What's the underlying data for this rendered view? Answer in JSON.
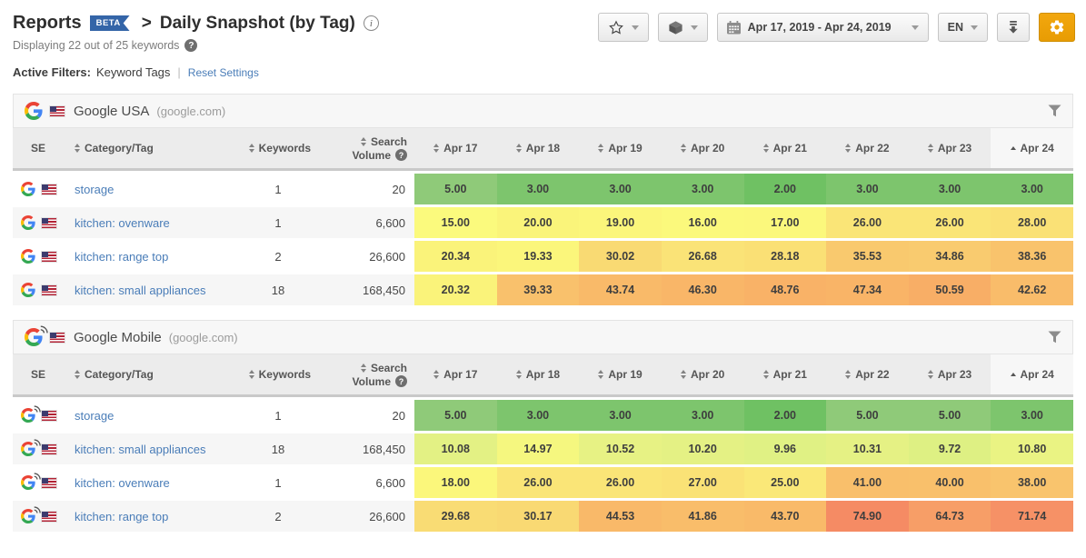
{
  "header": {
    "title": "Reports",
    "beta_badge": "BETA",
    "breadcrumb_separator": ">",
    "report_name": "Daily Snapshot (by Tag)",
    "info_icon": "i",
    "displaying_text": "Displaying 22 out of 25 keywords",
    "help_icon": "?"
  },
  "toolbar": {
    "favorite_icon": "star",
    "package_icon": "package",
    "calendar_icon": "calendar",
    "date_range": "Apr 17, 2019 - Apr 24, 2019",
    "language": "EN",
    "download_icon": "download",
    "settings_icon": "gear"
  },
  "filters": {
    "label": "Active Filters:",
    "value": "Keyword Tags",
    "separator": "|",
    "reset_label": "Reset Settings"
  },
  "columns": {
    "se": "SE",
    "category": "Category/Tag",
    "keywords": "Keywords",
    "search_volume_line1": "Search",
    "search_volume_line2": "Volume",
    "dates": [
      "Apr 17",
      "Apr 18",
      "Apr 19",
      "Apr 20",
      "Apr 21",
      "Apr 22",
      "Apr 23",
      "Apr 24"
    ],
    "sorted_column": "Apr 24",
    "sort_direction": "asc"
  },
  "sections": [
    {
      "name": "Google USA",
      "domain": "(google.com)",
      "device": "desktop",
      "rows": [
        {
          "category": "storage",
          "keywords": "1",
          "search_volume": "20",
          "values": [
            "5.00",
            "3.00",
            "3.00",
            "3.00",
            "2.00",
            "3.00",
            "3.00",
            "3.00"
          ],
          "colors": [
            "#8fca79",
            "#7dc56d",
            "#7dc56d",
            "#7dc56d",
            "#6fc163",
            "#7dc56d",
            "#7dc56d",
            "#7dc56d"
          ]
        },
        {
          "category": "kitchen: ovenware",
          "keywords": "1",
          "search_volume": "6,600",
          "values": [
            "15.00",
            "20.00",
            "19.00",
            "16.00",
            "17.00",
            "26.00",
            "26.00",
            "28.00"
          ],
          "colors": [
            "#fbfa7d",
            "#faf47a",
            "#fbf67b",
            "#fbf97c",
            "#fbf87c",
            "#fae577",
            "#fae577",
            "#fae176"
          ]
        },
        {
          "category": "kitchen: range top",
          "keywords": "2",
          "search_volume": "26,600",
          "values": [
            "20.34",
            "19.33",
            "30.02",
            "26.68",
            "28.18",
            "35.53",
            "34.86",
            "38.36"
          ],
          "colors": [
            "#faf37a",
            "#fbf67b",
            "#f9da73",
            "#fae377",
            "#fae075",
            "#f9c96e",
            "#f9cb6f",
            "#f9c36c"
          ]
        },
        {
          "category": "kitchen: small appliances",
          "keywords": "18",
          "search_volume": "168,450",
          "values": [
            "20.32",
            "39.33",
            "43.74",
            "46.30",
            "48.76",
            "47.34",
            "50.59",
            "42.62"
          ],
          "colors": [
            "#faf37a",
            "#f9c16c",
            "#f9ba69",
            "#f9b668",
            "#f9b267",
            "#f9b467",
            "#f8ae66",
            "#f9bc6a"
          ]
        }
      ]
    },
    {
      "name": "Google Mobile",
      "domain": "(google.com)",
      "device": "mobile",
      "rows": [
        {
          "category": "storage",
          "keywords": "1",
          "search_volume": "20",
          "values": [
            "5.00",
            "3.00",
            "3.00",
            "3.00",
            "2.00",
            "5.00",
            "5.00",
            "3.00"
          ],
          "colors": [
            "#8fca79",
            "#7dc56d",
            "#7dc56d",
            "#7dc56d",
            "#6fc163",
            "#8fca79",
            "#8fca79",
            "#7dc56d"
          ]
        },
        {
          "category": "kitchen: small appliances",
          "keywords": "18",
          "search_volume": "168,450",
          "values": [
            "10.08",
            "14.97",
            "10.52",
            "10.20",
            "9.96",
            "10.31",
            "9.72",
            "10.80"
          ],
          "colors": [
            "#e3f184",
            "#f5f77f",
            "#e7f284",
            "#e4f184",
            "#e0f184",
            "#e5f184",
            "#def083",
            "#eaf383"
          ]
        },
        {
          "category": "kitchen: ovenware",
          "keywords": "1",
          "search_volume": "6,600",
          "values": [
            "18.00",
            "26.00",
            "26.00",
            "27.00",
            "25.00",
            "41.00",
            "40.00",
            "38.00"
          ],
          "colors": [
            "#fbf77b",
            "#fae577",
            "#fae577",
            "#fae276",
            "#fae878",
            "#f9bf6b",
            "#f9c06b",
            "#f9c46d"
          ]
        },
        {
          "category": "kitchen: range top",
          "keywords": "2",
          "search_volume": "26,600",
          "values": [
            "29.68",
            "30.17",
            "44.53",
            "41.86",
            "43.70",
            "74.90",
            "64.73",
            "71.74"
          ],
          "colors": [
            "#f9dc74",
            "#f9d973",
            "#f9b969",
            "#f9bd6a",
            "#f9ba69",
            "#f58b64",
            "#f79e67",
            "#f69166"
          ]
        }
      ]
    }
  ],
  "theme": {
    "accent_orange": "#eda20c",
    "link_blue": "#4a7db8",
    "beta_blue": "#3465a8",
    "table_header_bg": "#ececec",
    "section_header_bg": "#f7f7f7"
  }
}
